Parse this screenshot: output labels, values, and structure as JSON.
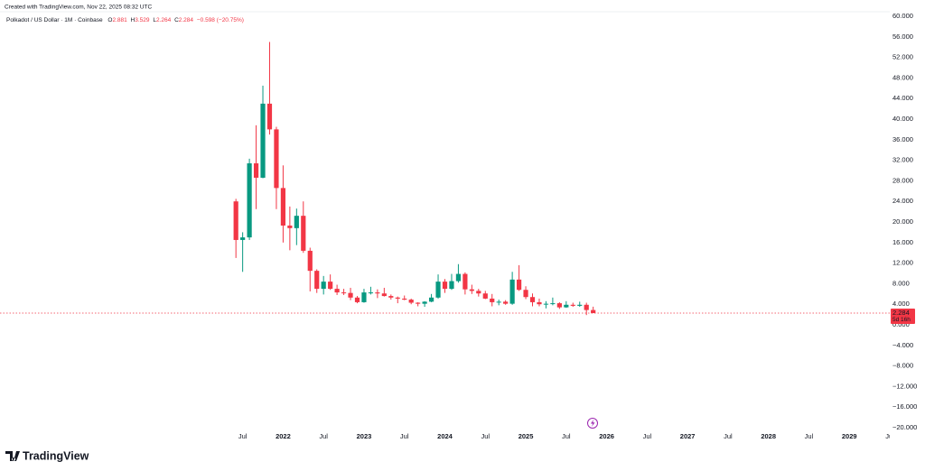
{
  "header": {
    "created": "Created with TradingView.com, Nov 22, 2025 08:32 UTC",
    "symbol": "Polkadot / US Dollar · 1M · Coinbase",
    "ohlc_letters": [
      "O",
      "H",
      "L",
      "C"
    ],
    "change": "−0.598 (−20.75%)",
    "countdown": "5d 16h",
    "brand": "TradingView"
  },
  "chart_data": {
    "type": "candlestick",
    "x": [
      "2021-06",
      "2021-07",
      "2021-08",
      "2021-09",
      "2021-10",
      "2021-11",
      "2021-12",
      "2022-01",
      "2022-02",
      "2022-03",
      "2022-04",
      "2022-05",
      "2022-06",
      "2022-07",
      "2022-08",
      "2022-09",
      "2022-10",
      "2022-11",
      "2022-12",
      "2023-01",
      "2023-02",
      "2023-03",
      "2023-04",
      "2023-05",
      "2023-06",
      "2023-07",
      "2023-08",
      "2023-09",
      "2023-10",
      "2023-11",
      "2023-12",
      "2024-01",
      "2024-02",
      "2024-03",
      "2024-04",
      "2024-05",
      "2024-06",
      "2024-07",
      "2024-08",
      "2024-09",
      "2024-10",
      "2024-11",
      "2024-12",
      "2025-01",
      "2025-02",
      "2025-03",
      "2025-04",
      "2025-05",
      "2025-06",
      "2025-07",
      "2025-08",
      "2025-09",
      "2025-10",
      "2025-11"
    ],
    "open": [
      24,
      16.5,
      17,
      31.4,
      28.6,
      43,
      38,
      26.6,
      19.3,
      18.8,
      21.2,
      14.4,
      10.5,
      7,
      8.4,
      7,
      6.3,
      6.2,
      5.3,
      4.4,
      6.3,
      6.3,
      6.1,
      5.6,
      5.3,
      5.1,
      4.9,
      4.3,
      4.1,
      4.5,
      5.3,
      8.4,
      7,
      8.5,
      9.9,
      6.9,
      6.6,
      6.1,
      5.1,
      4.4,
      4.5,
      4.1,
      8.8,
      6.8,
      5.4,
      4.4,
      4,
      4.1,
      4.2,
      3.4,
      3.9,
      3.7,
      3.9,
      2.881
    ],
    "high": [
      24.5,
      18,
      32.3,
      38.8,
      46.5,
      55,
      38.5,
      31,
      23,
      22.6,
      24,
      15,
      10.8,
      9.5,
      9.8,
      7.8,
      7,
      7.2,
      5.6,
      7,
      7.4,
      6.9,
      7.2,
      5.9,
      5.5,
      5.7,
      5.1,
      4.4,
      4.6,
      6,
      9.8,
      8.9,
      9.9,
      11.8,
      10.2,
      7.8,
      7,
      6.6,
      6,
      4.9,
      4.8,
      10.3,
      11.6,
      7.5,
      6.1,
      5.1,
      4.6,
      5.3,
      4.4,
      4.6,
      4.3,
      4.5,
      4.3,
      3.529
    ],
    "low": [
      13,
      10.3,
      16.5,
      22.5,
      28.5,
      37,
      22.5,
      16,
      14.5,
      15.5,
      14,
      6.5,
      6.2,
      5.9,
      6.8,
      5.8,
      5.8,
      4.8,
      4.2,
      4.3,
      5.9,
      5.2,
      5.5,
      4.9,
      4.2,
      4.8,
      4,
      3.6,
      3.5,
      4.4,
      5.1,
      6.2,
      6.8,
      8.2,
      5.9,
      6,
      5.5,
      5,
      3.6,
      3.8,
      3.9,
      3.9,
      6.6,
      5,
      3.6,
      3.6,
      3.2,
      3.8,
      3.1,
      3.3,
      3.5,
      3.5,
      1.9,
      2.264
    ],
    "close": [
      16.5,
      17,
      31.4,
      28.6,
      43,
      38,
      26.6,
      19.3,
      18.8,
      21.2,
      14.4,
      10.5,
      7,
      8.4,
      7,
      6.3,
      6.2,
      5.3,
      4.4,
      6.3,
      6.3,
      6.1,
      5.6,
      5.3,
      5.1,
      4.9,
      4.3,
      4.1,
      4.5,
      5.3,
      8.4,
      7,
      8.5,
      9.9,
      6.9,
      6.6,
      6.1,
      5.1,
      4.4,
      4.5,
      4.1,
      8.8,
      6.8,
      5.4,
      4.4,
      4,
      4.1,
      4.2,
      3.4,
      3.9,
      3.7,
      3.9,
      2.881,
      2.284
    ],
    "up_color": "#089981",
    "down_color": "#f23645",
    "xlim": [
      "2018-07",
      "2029-07"
    ],
    "xticks": [
      {
        "value": "2021-07",
        "label": "Jul"
      },
      {
        "value": "2022-01",
        "label": "2022"
      },
      {
        "value": "2022-07",
        "label": "Jul"
      },
      {
        "value": "2023-01",
        "label": "2023"
      },
      {
        "value": "2023-07",
        "label": "Jul"
      },
      {
        "value": "2024-01",
        "label": "2024"
      },
      {
        "value": "2024-07",
        "label": "Jul"
      },
      {
        "value": "2025-01",
        "label": "2025"
      },
      {
        "value": "2025-07",
        "label": "Jul"
      },
      {
        "value": "2026-01",
        "label": "2026"
      },
      {
        "value": "2026-07",
        "label": "Jul"
      },
      {
        "value": "2027-01",
        "label": "2027"
      },
      {
        "value": "2027-07",
        "label": "Jul"
      },
      {
        "value": "2028-01",
        "label": "2028"
      },
      {
        "value": "2028-07",
        "label": "Jul"
      },
      {
        "value": "2029-01",
        "label": "2029"
      },
      {
        "value": "2029-07",
        "label": "Jul"
      }
    ],
    "ylim": [
      -21.05,
      61.05
    ],
    "yticks": [
      {
        "value": 60,
        "label": "60.000"
      },
      {
        "value": 56,
        "label": "56.000"
      },
      {
        "value": 52,
        "label": "52.000"
      },
      {
        "value": 48,
        "label": "48.000"
      },
      {
        "value": 44,
        "label": "44.000"
      },
      {
        "value": 40,
        "label": "40.000"
      },
      {
        "value": 36,
        "label": "36.000"
      },
      {
        "value": 32,
        "label": "32.000"
      },
      {
        "value": 28,
        "label": "28.000"
      },
      {
        "value": 24,
        "label": "24.000"
      },
      {
        "value": 20,
        "label": "20.000"
      },
      {
        "value": 16,
        "label": "16.000"
      },
      {
        "value": 12,
        "label": "12.000"
      },
      {
        "value": 8,
        "label": "8.000"
      },
      {
        "value": 4,
        "label": "4.000"
      },
      {
        "value": 0,
        "label": "0.000"
      },
      {
        "value": -4,
        "label": "−4.000"
      },
      {
        "value": -8,
        "label": "−8.000"
      },
      {
        "value": -12,
        "label": "−12.000"
      },
      {
        "value": -16,
        "label": "−16.000"
      },
      {
        "value": -20,
        "label": "−20.000"
      }
    ],
    "grid": false
  }
}
